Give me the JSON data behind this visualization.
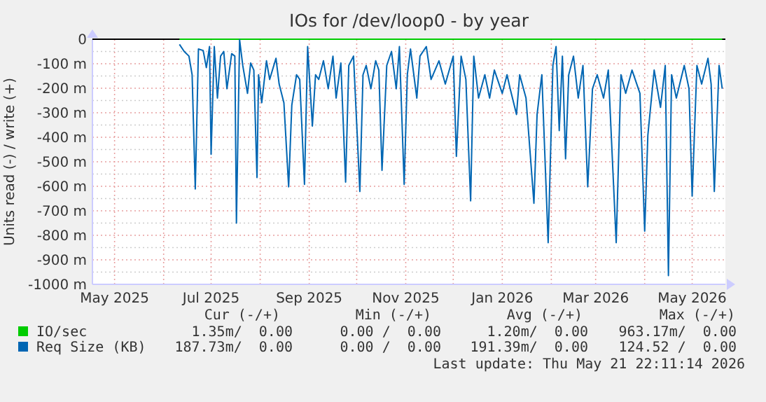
{
  "chart_data": {
    "type": "line",
    "title": "IOs for /dev/loop0 - by year",
    "ylabel": "Units read (-) / write (+)",
    "xlim": [
      "2025-04-17",
      "2026-05-22"
    ],
    "xticks": [
      {
        "value": "2025-05-01",
        "label": "May 2025"
      },
      {
        "value": "2025-06-01",
        "label": null
      },
      {
        "value": "2025-07-01",
        "label": "Jul 2025"
      },
      {
        "value": "2025-08-01",
        "label": null
      },
      {
        "value": "2025-09-01",
        "label": "Sep 2025"
      },
      {
        "value": "2025-10-01",
        "label": null
      },
      {
        "value": "2025-11-01",
        "label": "Nov 2025"
      },
      {
        "value": "2025-12-01",
        "label": null
      },
      {
        "value": "2026-01-01",
        "label": "Jan 2026"
      },
      {
        "value": "2026-02-01",
        "label": null
      },
      {
        "value": "2026-03-01",
        "label": "Mar 2026"
      },
      {
        "value": "2026-04-01",
        "label": null
      },
      {
        "value": "2026-05-01",
        "label": "May 2026"
      }
    ],
    "ylim": [
      -1000,
      0
    ],
    "yticks": [
      {
        "value": -1000,
        "label": "-1000 m"
      },
      {
        "value": -900,
        "label": "-900 m"
      },
      {
        "value": -800,
        "label": "-800 m"
      },
      {
        "value": -700,
        "label": "-700 m"
      },
      {
        "value": -600,
        "label": "-600 m"
      },
      {
        "value": -500,
        "label": "-500 m"
      },
      {
        "value": -400,
        "label": "-400 m"
      },
      {
        "value": -300,
        "label": "-300 m"
      },
      {
        "value": -200,
        "label": "-200 m"
      },
      {
        "value": -100,
        "label": "-100 m"
      },
      0
    ],
    "grid": true,
    "legend": "bottom left",
    "series": [
      {
        "name": "IO/sec",
        "color": "#00cc00",
        "x": [
          "2025-06-11",
          "2026-05-20"
        ],
        "values": [
          0,
          0
        ]
      },
      {
        "name": "Req Size (KB)",
        "color": "#0066b3",
        "x": [
          "2025-06-11",
          "2025-06-14",
          "2025-06-17",
          "2025-06-19",
          "2025-06-21",
          "2025-06-23",
          "2025-06-26",
          "2025-06-28",
          "2025-06-30",
          "2025-07-01",
          "2025-07-03",
          "2025-07-05",
          "2025-07-07",
          "2025-07-09",
          "2025-07-11",
          "2025-07-14",
          "2025-07-16",
          "2025-07-17",
          "2025-07-19",
          "2025-07-21",
          "2025-07-24",
          "2025-07-26",
          "2025-07-28",
          "2025-07-30",
          "2025-07-31",
          "2025-08-02",
          "2025-08-05",
          "2025-08-07",
          "2025-08-11",
          "2025-08-13",
          "2025-08-16",
          "2025-08-19",
          "2025-08-21",
          "2025-08-24",
          "2025-08-26",
          "2025-08-29",
          "2025-08-31",
          "2025-09-03",
          "2025-09-05",
          "2025-09-07",
          "2025-09-10",
          "2025-09-13",
          "2025-09-16",
          "2025-09-18",
          "2025-09-21",
          "2025-09-24",
          "2025-09-26",
          "2025-09-29",
          "2025-10-03",
          "2025-10-05",
          "2025-10-07",
          "2025-10-10",
          "2025-10-13",
          "2025-10-15",
          "2025-10-17",
          "2025-10-20",
          "2025-10-23",
          "2025-10-26",
          "2025-10-28",
          "2025-10-31",
          "2025-11-02",
          "2025-11-04",
          "2025-11-08",
          "2025-11-10",
          "2025-11-14",
          "2025-11-17",
          "2025-11-22",
          "2025-11-26",
          "2025-12-01",
          "2025-12-03",
          "2025-12-06",
          "2025-12-09",
          "2025-12-12",
          "2025-12-14",
          "2025-12-17",
          "2025-12-21",
          "2025-12-24",
          "2025-12-27",
          "2026-01-01",
          "2026-01-04",
          "2026-01-06",
          "2026-01-10",
          "2026-01-12",
          "2026-01-16",
          "2026-01-21",
          "2026-01-23",
          "2026-01-26",
          "2026-01-30",
          "2026-02-02",
          "2026-02-04",
          "2026-02-06",
          "2026-02-08",
          "2026-02-10",
          "2026-02-12",
          "2026-02-15",
          "2026-02-18",
          "2026-02-21",
          "2026-02-24",
          "2026-02-27",
          "2026-03-02",
          "2026-03-06",
          "2026-03-09",
          "2026-03-14",
          "2026-03-17",
          "2026-03-20",
          "2026-03-24",
          "2026-03-29",
          "2026-04-01",
          "2026-04-03",
          "2026-04-07",
          "2026-04-11",
          "2026-04-14",
          "2026-04-16",
          "2026-04-18",
          "2026-04-21",
          "2026-04-26",
          "2026-04-29",
          "2026-05-01",
          "2026-05-04",
          "2026-05-07",
          "2026-05-11",
          "2026-05-13",
          "2026-05-15",
          "2026-05-18",
          "2026-05-20"
        ],
        "values": [
          -21,
          -50,
          -69,
          -145,
          -611,
          -40,
          -46,
          -116,
          -30,
          -469,
          -30,
          -240,
          -69,
          -50,
          -202,
          -59,
          -69,
          -750,
          -2,
          -107,
          -221,
          -97,
          -126,
          -564,
          -145,
          -259,
          -88,
          -164,
          -78,
          -183,
          -259,
          -602,
          -269,
          -145,
          -164,
          -592,
          -30,
          -354,
          -145,
          -164,
          -88,
          -202,
          -69,
          -240,
          -97,
          -583,
          -107,
          -69,
          -621,
          -145,
          -107,
          -202,
          -88,
          -126,
          -535,
          -107,
          -50,
          -202,
          -30,
          -592,
          -145,
          -40,
          -240,
          -69,
          -30,
          -164,
          -88,
          -183,
          -69,
          -478,
          -69,
          -164,
          -659,
          -69,
          -240,
          -145,
          -240,
          -126,
          -221,
          -145,
          -202,
          -307,
          -145,
          -240,
          -669,
          -307,
          -145,
          -830,
          -107,
          -30,
          -373,
          -69,
          -488,
          -145,
          -69,
          -240,
          -107,
          -602,
          -202,
          -145,
          -240,
          -126,
          -830,
          -145,
          -221,
          -126,
          -221,
          -783,
          -392,
          -126,
          -278,
          -107,
          -964,
          -145,
          -240,
          -107,
          -202,
          -640,
          -107,
          -183,
          -78,
          -183,
          -621,
          -107,
          -202
        ]
      }
    ],
    "annotations": [
      "Cur (-/+)",
      "Min (-/+)",
      "Avg (-/+)",
      "Max (-/+)",
      "1.35m/  0.00",
      "0.00 /  0.00",
      "1.20m/  0.00",
      "963.17m/  0.00",
      "187.73m/  0.00",
      "0.00 /  0.00",
      "191.39m/  0.00",
      "124.52 /  0.00",
      "Last update: Thu May 21 22:11:14 2026"
    ]
  }
}
